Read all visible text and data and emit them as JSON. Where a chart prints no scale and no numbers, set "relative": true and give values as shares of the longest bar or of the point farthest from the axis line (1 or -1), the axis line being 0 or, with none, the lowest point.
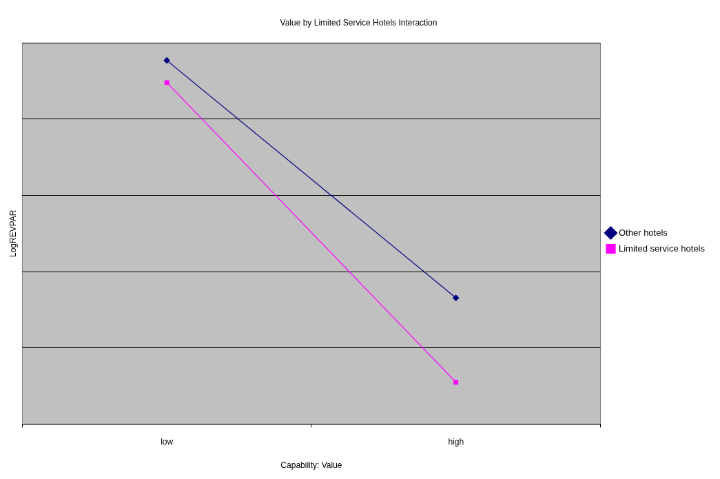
{
  "chart_data": {
    "type": "line",
    "title": "Value by Limited Service Hotels Interaction",
    "xlabel": "Capability: Value",
    "ylabel": "LogREVPAR",
    "categories": [
      "low",
      "high"
    ],
    "relative": true,
    "grid": "y",
    "legend": "right",
    "series": [
      {
        "name": "Other hotels",
        "color": "#000080",
        "marker": "diamond",
        "values": [
          1,
          0.347
        ]
      },
      {
        "name": "Limited service hotels",
        "color": "#ff00ff",
        "marker": "square",
        "values": [
          0.939,
          0.115
        ]
      }
    ]
  }
}
